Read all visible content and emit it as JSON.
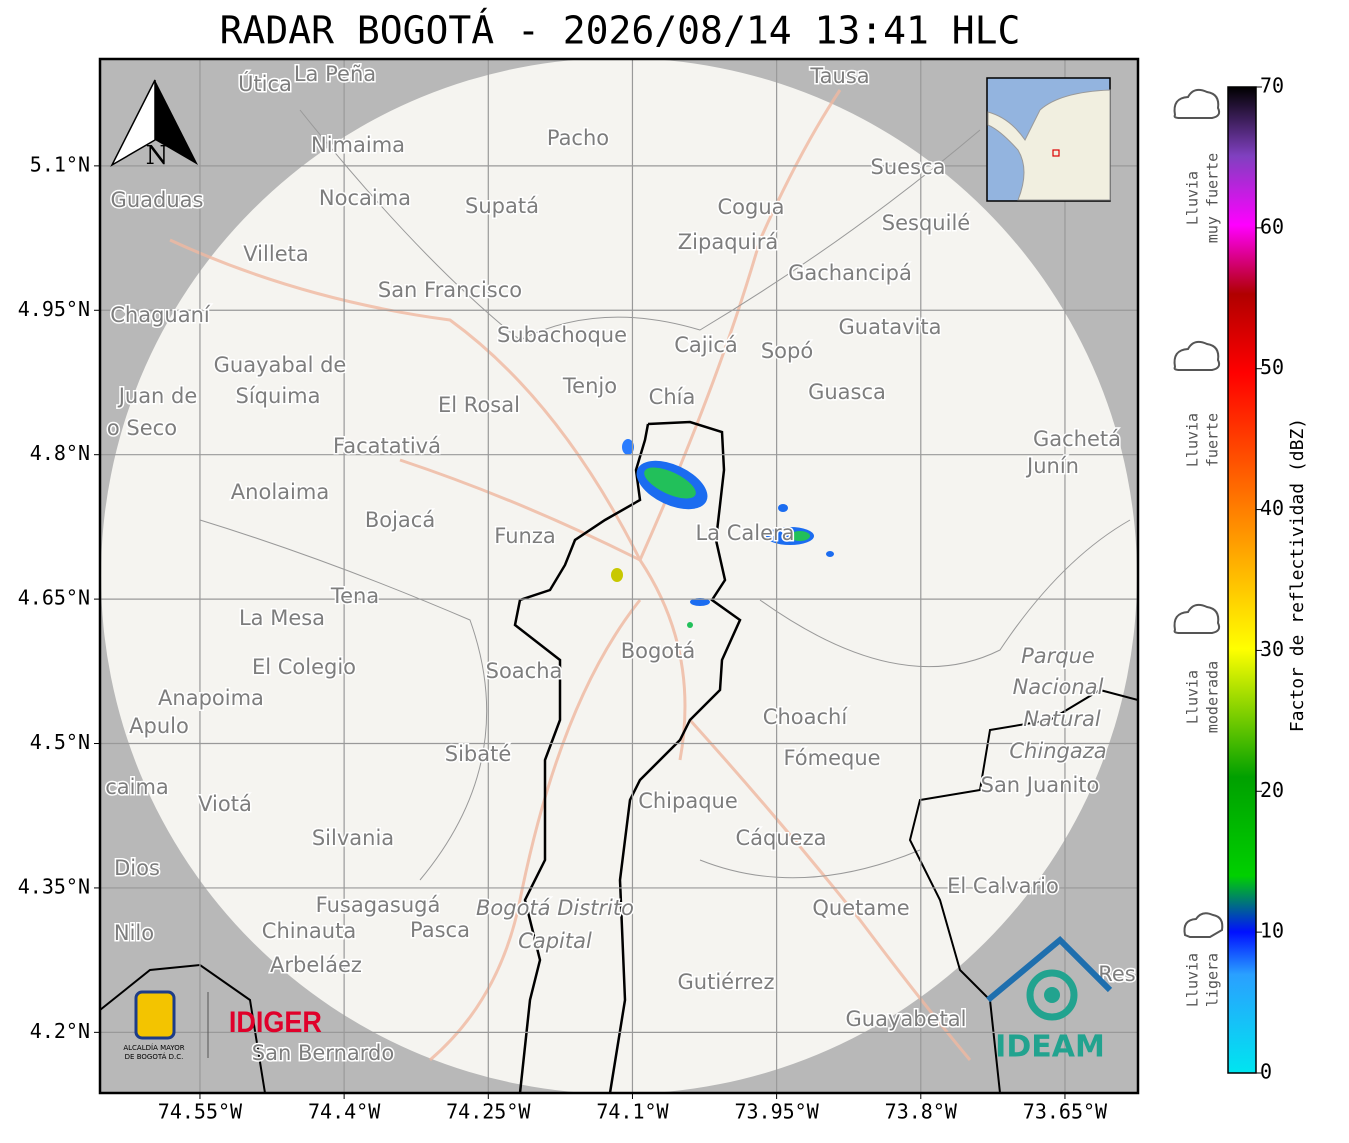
{
  "title": "RADAR BOGOTÁ - 2026/08/14 13:41 HLC",
  "map": {
    "xlim": [
      -74.654,
      -73.574
    ],
    "ylim": [
      4.137,
      5.211
    ],
    "grid": true,
    "xticks": [
      {
        "value": -74.55,
        "label": "74.55°W"
      },
      {
        "value": -74.4,
        "label": "74.4°W"
      },
      {
        "value": -74.25,
        "label": "74.25°W"
      },
      {
        "value": -74.1,
        "label": "74.1°W"
      },
      {
        "value": -73.95,
        "label": "73.95°W"
      },
      {
        "value": -73.8,
        "label": "73.8°W"
      },
      {
        "value": -73.65,
        "label": "73.65°W"
      }
    ],
    "yticks": [
      {
        "value": 5.1,
        "label": "5.1°N"
      },
      {
        "value": 4.95,
        "label": "4.95°N"
      },
      {
        "value": 4.8,
        "label": "4.8°N"
      },
      {
        "value": 4.65,
        "label": "4.65°N"
      },
      {
        "value": 4.5,
        "label": "4.5°N"
      },
      {
        "value": 4.35,
        "label": "4.35°N"
      },
      {
        "value": 4.2,
        "label": "4.2°N"
      }
    ]
  },
  "colorbar": {
    "label": "Factor de reflectividad (dBZ)",
    "lim": [
      0,
      70
    ],
    "ticks": [
      0,
      10,
      20,
      30,
      40,
      50,
      60,
      70
    ]
  },
  "legend": [
    [
      "Lluvia",
      "muy fuerte"
    ],
    [
      "Lluvia",
      "fuerte"
    ],
    [
      "Lluvia",
      "moderada"
    ],
    [
      "Lluvia",
      "ligera"
    ]
  ],
  "places": [
    "Útica",
    "La Peña",
    "Tausa",
    "Pacho",
    "Nimaima",
    "Guaduas",
    "Nocaima",
    "Supatá",
    "Cogua",
    "Suesca",
    "Sesquilé",
    "Zipaquirá",
    "Villeta",
    "Gachancipá",
    "San Francisco",
    "Chaguaní",
    "Guatavita",
    "Subachoque",
    "Cajicá",
    "Sopó",
    "Guayabal de",
    "Síquima",
    "Tenjo",
    "Chía",
    "Guasca",
    "Juan de",
    "o Seco",
    "El Rosal",
    "Facatativá",
    "Gachetá",
    "Junín",
    "Anolaima",
    "Bojacá",
    "Funza",
    "La Calera",
    "Tena",
    "La Mesa",
    "Bogotá",
    "Soacha",
    "El Colegio",
    "Parque",
    "Nacional",
    "Natural",
    "Chingaza",
    "Anapoima",
    "Apulo",
    "Choachí",
    "Sibaté",
    "Fómeque",
    "San Juanito",
    "caima",
    "Viotá",
    "Chipaque",
    "Silvania",
    "Cáqueza",
    "Dios",
    "El Calvario",
    "Fusagasugá",
    "Bogotá Distrito",
    "Capital",
    "Quetame",
    "Nilo",
    "Chinauta",
    "Pasca",
    "Arbeláez",
    "Gutiérrez",
    "Res",
    "Guayabetal",
    "San Bernardo"
  ],
  "logos": {
    "compass": "N",
    "alcaldia": [
      "ALCALDÍA MAYOR",
      "DE BOGOTÁ D.C."
    ],
    "idiger": "IDIGER",
    "ideam": "IDEAM"
  }
}
